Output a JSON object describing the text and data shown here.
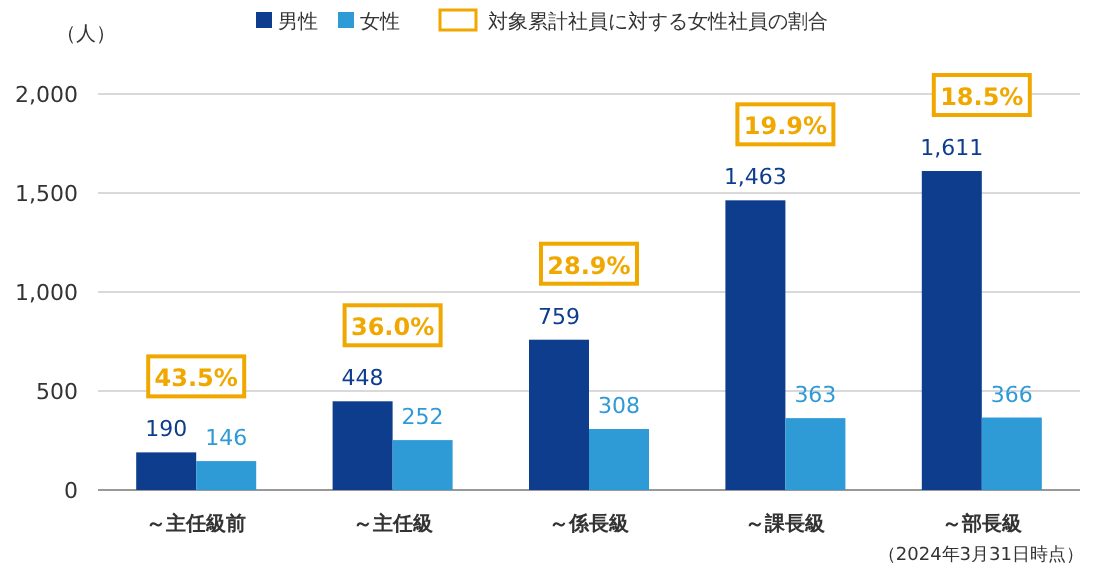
{
  "chart_data": {
    "type": "bar",
    "ylabel": "（人）",
    "categories": [
      "～主任級前",
      "～主任級",
      "～係長級",
      "～課長級",
      "～部長級"
    ],
    "series": [
      {
        "name": "男性",
        "color": "#0d3d8c",
        "values": [
          190,
          448,
          759,
          1463,
          1611
        ],
        "value_labels": [
          "190",
          "448",
          "759",
          "1,463",
          "1,611"
        ]
      },
      {
        "name": "女性",
        "color": "#2e9ad6",
        "values": [
          146,
          252,
          308,
          363,
          366
        ],
        "value_labels": [
          "146",
          "252",
          "308",
          "363",
          "366"
        ]
      }
    ],
    "ylim": [
      0,
      2000
    ],
    "yticks": [
      0,
      {
        "value": 500,
        "label": "500"
      },
      {
        "value": 1000,
        "label": "1,000"
      },
      {
        "value": 1500,
        "label": "1,500"
      },
      {
        "value": 2000,
        "label": "2,000"
      }
    ],
    "grid": "y",
    "legend": "top",
    "annotations": [
      "対象累計社員に対する女性社員の割合",
      "43.5%",
      "36.0%",
      "28.9%",
      "19.9%",
      "18.5%",
      "（2024年3月31日時点）"
    ]
  }
}
